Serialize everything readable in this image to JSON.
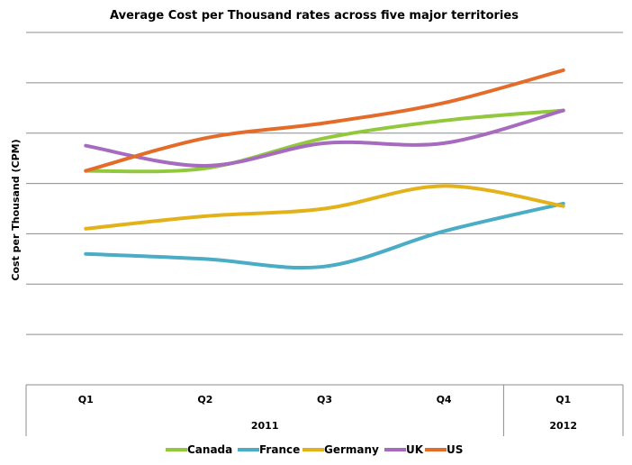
{
  "chart_data": {
    "type": "line",
    "title": "Average Cost per Thousand rates across five major territories",
    "xlabel": "",
    "ylabel": "Cost per Thousand (CPM)",
    "categories": [
      "Q1",
      "Q2",
      "Q3",
      "Q4",
      "Q1"
    ],
    "category_groups": [
      {
        "label": "2011",
        "span": 4
      },
      {
        "label": "2012",
        "span": 1
      }
    ],
    "ylim": [
      0,
      7
    ],
    "y_tick_labels_shown": false,
    "grid": "horizontal",
    "legend_position": "bottom",
    "series": [
      {
        "name": "Canada",
        "color": "#92c83e",
        "values": [
          4.25,
          4.3,
          4.9,
          5.25,
          5.45
        ]
      },
      {
        "name": "France",
        "color": "#4aacc5",
        "values": [
          2.6,
          2.5,
          2.35,
          3.05,
          3.6
        ]
      },
      {
        "name": "Germany",
        "color": "#e3b21b",
        "values": [
          3.1,
          3.35,
          3.5,
          3.95,
          3.55
        ]
      },
      {
        "name": "UK",
        "color": "#a66bbf",
        "values": [
          4.75,
          4.35,
          4.8,
          4.8,
          5.45
        ]
      },
      {
        "name": "US",
        "color": "#e46c2b",
        "values": [
          4.25,
          4.9,
          5.2,
          5.6,
          6.25
        ]
      }
    ]
  }
}
